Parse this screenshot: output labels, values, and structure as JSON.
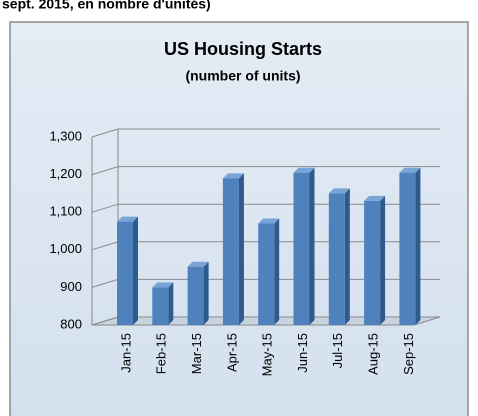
{
  "header": {
    "text": "sept. 2015, en nombre d'unités)"
  },
  "chart_data": {
    "type": "bar",
    "title": "US Housing Starts",
    "subtitle": "(number of units)",
    "categories": [
      "Jan-15",
      "Feb-15",
      "Mar-15",
      "Apr-15",
      "May-15",
      "Jun-15",
      "Jul-15",
      "Aug-15",
      "Sep-15"
    ],
    "values": [
      1075,
      900,
      955,
      1190,
      1070,
      1205,
      1150,
      1130,
      1205
    ],
    "color": "#4f81bd",
    "ylim": [
      800,
      1300
    ],
    "yticks": [
      {
        "value": 800,
        "label": "800"
      },
      {
        "value": 900,
        "label": "900"
      },
      {
        "value": 1000,
        "label": "1,000"
      },
      {
        "value": 1100,
        "label": "1,100"
      },
      {
        "value": 1200,
        "label": "1,200"
      },
      {
        "value": 1300,
        "label": "1,300"
      }
    ],
    "grid": true
  }
}
